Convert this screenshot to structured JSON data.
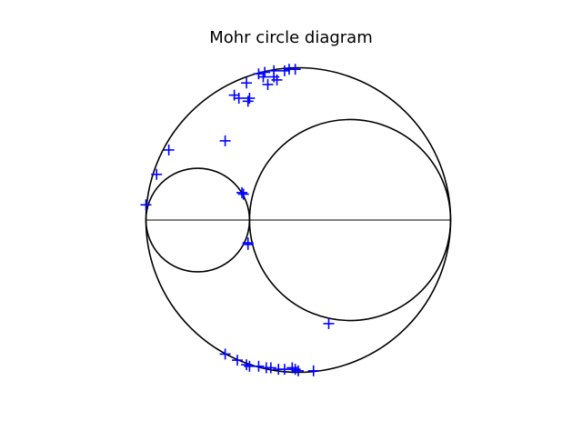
{
  "chart_data": {
    "type": "scatter",
    "title": "Mohr circle diagram",
    "xlabel": "",
    "ylabel": "",
    "xlim": [
      -0.35,
      10.35
    ],
    "ylim": [
      -5.2,
      5.2
    ],
    "grid": false,
    "axes_visible": false,
    "equal_aspect": true,
    "principal_stresses": {
      "sigma_1": 10.0,
      "sigma_2": 3.4,
      "sigma_3": 0.0
    },
    "circles": [
      {
        "name": "",
        "center": 1.7,
        "radius": 1.7
      },
      {
        "name": "",
        "center": 6.7,
        "radius": 3.3
      },
      {
        "name": "",
        "center": 5.0,
        "radius": 5.0
      }
    ],
    "baseline": {
      "x": [
        0.0,
        10.0
      ],
      "y": [
        0.0,
        0.0
      ]
    },
    "series": [
      {
        "name": "",
        "marker": "+",
        "color": "#0000ff",
        "x": [
          4.7,
          4.9,
          4.55,
          4.2,
          3.9,
          3.7,
          3.85,
          4.2,
          4.3,
          4.0,
          3.3,
          2.9,
          3.05,
          3.4,
          3.35,
          2.6,
          0.75,
          0.35,
          0.0,
          3.15,
          3.2,
          3.35,
          3.35,
          6.0,
          2.6,
          3.0,
          3.3,
          3.4,
          3.7,
          3.95,
          4.1,
          4.35,
          4.55,
          4.8,
          4.9,
          5.0,
          5.5
        ],
        "y": [
          4.95,
          4.95,
          4.9,
          4.9,
          4.85,
          4.8,
          4.7,
          4.7,
          4.6,
          4.45,
          4.5,
          4.1,
          4.0,
          4.0,
          3.9,
          2.6,
          2.3,
          1.5,
          0.5,
          0.9,
          0.85,
          -0.75,
          -0.8,
          -3.4,
          -4.4,
          -4.6,
          -4.75,
          -4.8,
          -4.8,
          -4.85,
          -4.85,
          -4.9,
          -4.9,
          -4.85,
          -4.9,
          -4.95,
          -4.95
        ]
      }
    ],
    "colors": {
      "circle": "#000000",
      "marker": "#0000ff"
    }
  }
}
